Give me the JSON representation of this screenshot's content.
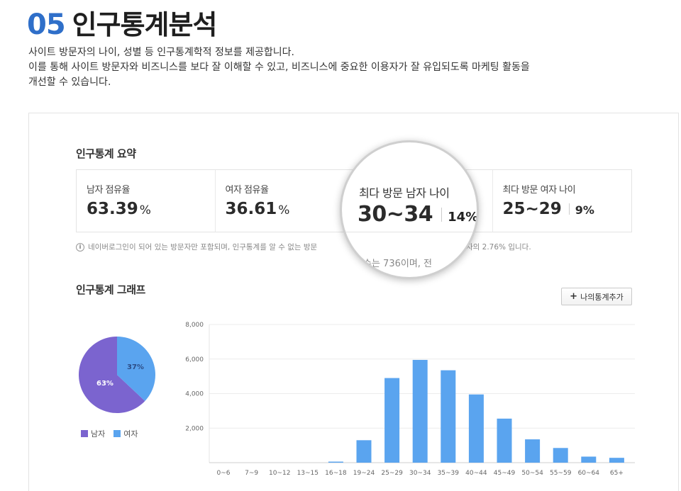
{
  "header": {
    "number": "05",
    "title": "인구통계분석",
    "desc_line1": "사이트 방문자의 나이, 성별 등 인구통계학적 정보를 제공합니다.",
    "desc_line2": "이를 통해 사이트 방문자와 비즈니스를 보다 잘 이해할 수 있고, 비즈니스에 중요한 이용자가 잘 유입되도록 마케팅 활동을",
    "desc_line3": "개선할 수 있습니다."
  },
  "summary": {
    "title": "인구통계 요약",
    "male_share_label": "남자 점유율",
    "male_share_value": "63.39",
    "female_share_label": "여자 점유율",
    "female_share_value": "36.61",
    "percent_unit": "%",
    "top_male_age_label": "최다 방문 남자 나이",
    "top_male_age_value": "30~34",
    "top_male_age_pct": "14%",
    "top_female_age_label": "최다 방문 여자 나이",
    "top_female_age_value": "25~29",
    "top_female_age_pct": "9%",
    "info_icon": "info-icon",
    "note_left": "네이버로그인이 되어 있는 방문자만 포함되며, 인구통계를 알 수 없는 방문",
    "note_right": "자의 2.76% 입니다.",
    "magnified_note": "수는 736이며, 전"
  },
  "graph": {
    "title": "인구통계 그래프",
    "add_button_label": "나의통계추가",
    "add_button_icon": "plus-icon"
  },
  "colors": {
    "accent": "#2f6fc9",
    "male": "#7b64cf",
    "female": "#5aa4ef",
    "bar": "#5aa4ef"
  },
  "chart_data": [
    {
      "type": "pie",
      "slices": [
        {
          "name": "남자",
          "value": 63,
          "label": "63%"
        },
        {
          "name": "여자",
          "value": 37,
          "label": "37%"
        }
      ],
      "legend": [
        "남자",
        "여자"
      ],
      "legend_placement": "bottom"
    },
    {
      "type": "bar",
      "categories": [
        "0~6",
        "7~9",
        "10~12",
        "13~15",
        "16~18",
        "19~24",
        "25~29",
        "30~34",
        "35~39",
        "40~44",
        "45~49",
        "50~54",
        "55~59",
        "60~64",
        "65+"
      ],
      "values": [
        0,
        0,
        0,
        0,
        60,
        1300,
        4900,
        5950,
        5350,
        3950,
        2550,
        1350,
        850,
        350,
        280
      ],
      "ylim": [
        0,
        8000
      ],
      "yticks": [
        2000,
        4000,
        6000,
        8000
      ],
      "ytick_labels": [
        "2,000",
        "4,000",
        "6,000",
        "8,000"
      ],
      "grid": true
    }
  ]
}
